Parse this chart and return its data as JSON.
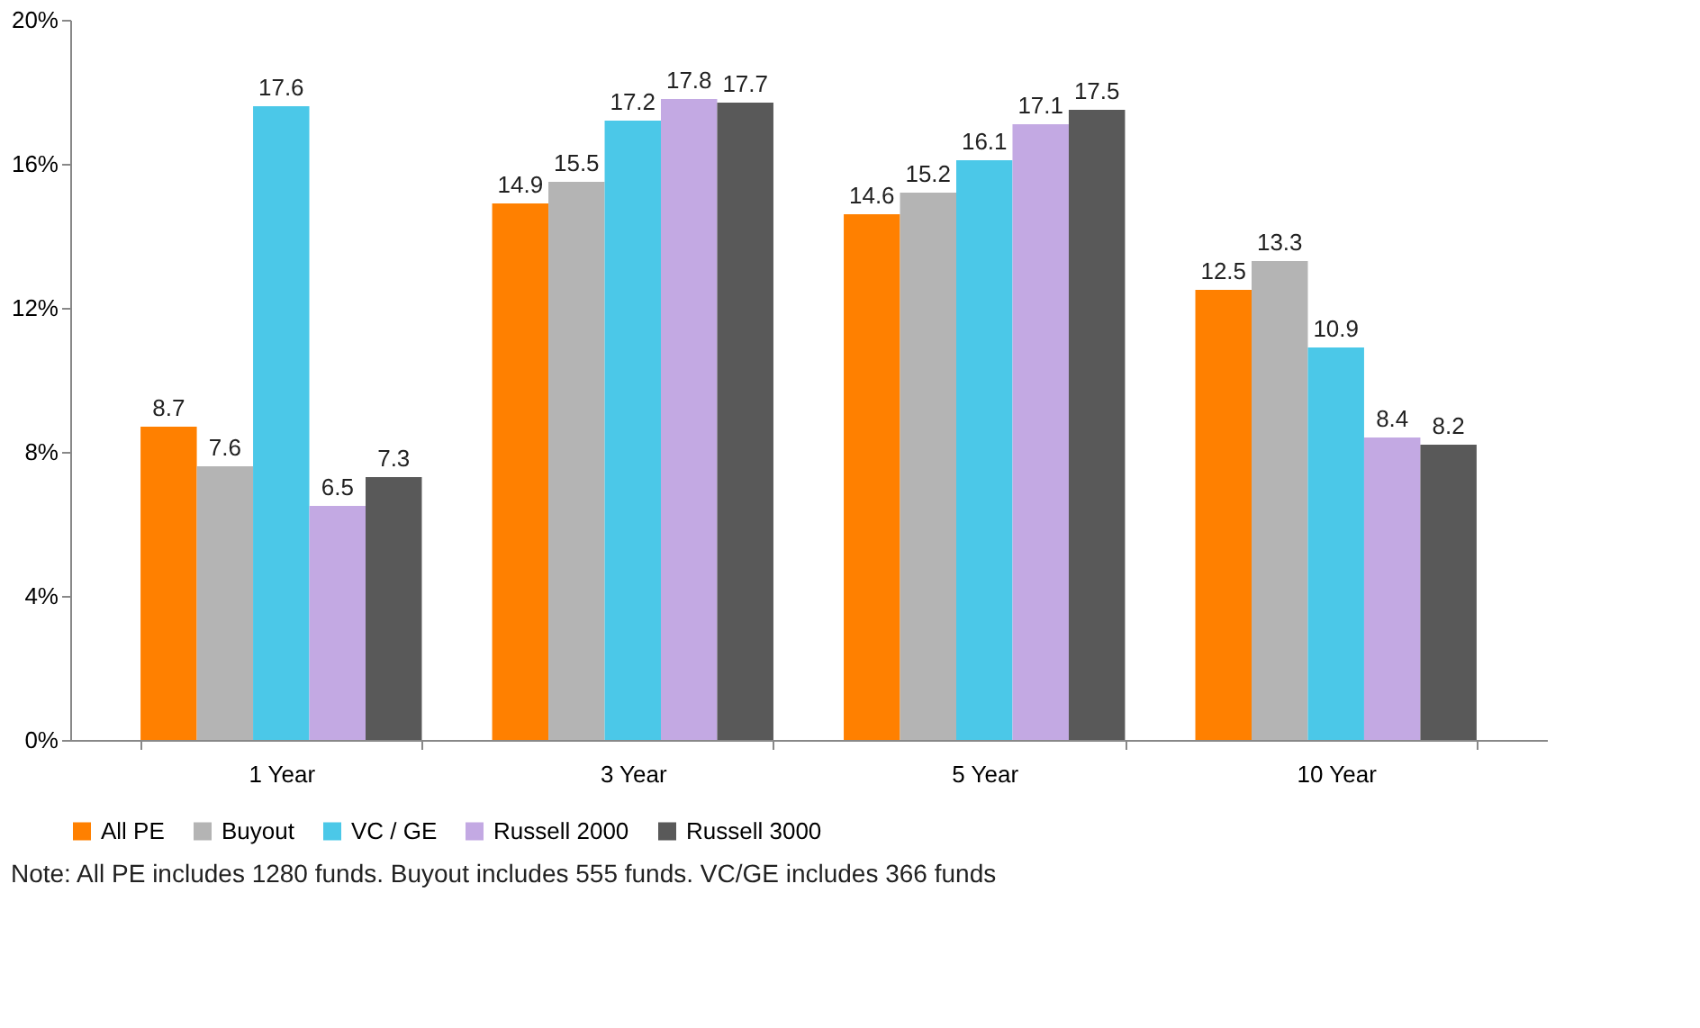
{
  "chart_data": {
    "type": "bar",
    "categories": [
      "1 Year",
      "3 Year",
      "5 Year",
      "10 Year"
    ],
    "series": [
      {
        "name": "All PE",
        "color": "#ff8000",
        "values": [
          8.7,
          14.9,
          14.6,
          12.5
        ]
      },
      {
        "name": "Buyout",
        "color": "#b4b4b4",
        "values": [
          7.6,
          15.5,
          15.2,
          13.3
        ]
      },
      {
        "name": "VC / GE",
        "color": "#4bc8e8",
        "values": [
          17.6,
          17.2,
          16.1,
          10.9
        ]
      },
      {
        "name": "Russell 2000",
        "color": "#c3a9e3",
        "values": [
          6.5,
          17.8,
          17.1,
          8.4
        ]
      },
      {
        "name": "Russell 3000",
        "color": "#595959",
        "values": [
          7.3,
          17.7,
          17.5,
          8.2
        ]
      }
    ],
    "ylim": [
      0,
      20
    ],
    "yticks": [
      {
        "value": 0,
        "label": "0%"
      },
      {
        "value": 4,
        "label": "4%"
      },
      {
        "value": 8,
        "label": "8%"
      },
      {
        "value": 12,
        "label": "12%"
      },
      {
        "value": 16,
        "label": "16%"
      },
      {
        "value": 20,
        "label": "20%"
      }
    ],
    "data_labels": true,
    "grid": false,
    "legend": "bottom",
    "annotations": [
      "Note: All PE includes 1280 funds. Buyout includes 555 funds. VC/GE includes 366 funds"
    ]
  }
}
